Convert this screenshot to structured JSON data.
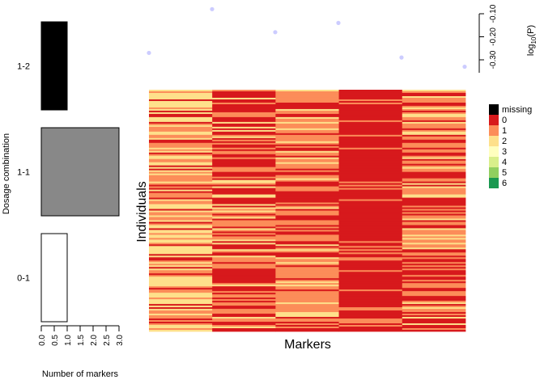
{
  "chart_data": [
    {
      "type": "bar",
      "orientation": "horizontal",
      "categories": [
        "1-2",
        "1-1",
        "0-1"
      ],
      "values": [
        1,
        3,
        1
      ],
      "colors": [
        "#000000",
        "#888888",
        "#ffffff"
      ],
      "xlabel": "Number of markers",
      "ylabel": "Dosage combination",
      "xlim": [
        0,
        3
      ],
      "xticks": [
        "0.0",
        "0.5",
        "1.0",
        "1.5",
        "2.0",
        "2.5",
        "3.0"
      ]
    },
    {
      "type": "scatter",
      "x": [
        1,
        2,
        3,
        4,
        5,
        6
      ],
      "y": [
        -0.27,
        -0.08,
        -0.18,
        -0.14,
        -0.29,
        -0.33
      ],
      "color": "#ccccff",
      "ylabel_prefix": "log",
      "ylabel_sub": "10",
      "ylabel_suffix": "(P)",
      "ylim": [
        -0.32,
        -0.08
      ],
      "yticks": [
        "-0.10",
        "-0.20",
        "-0.30"
      ]
    },
    {
      "type": "heatmap",
      "xlabel": "Markers",
      "ylabel": "Individuals",
      "n_markers": 5,
      "n_individuals": 150,
      "marker_dosage_probabilities": [
        [
          0.25,
          0.3,
          0.45
        ],
        [
          0.55,
          0.3,
          0.15
        ],
        [
          0.3,
          0.55,
          0.15
        ],
        [
          0.85,
          0.15,
          0.0
        ],
        [
          0.4,
          0.45,
          0.15
        ]
      ],
      "legend": {
        "labels": [
          "missing",
          "0",
          "1",
          "2",
          "3",
          "4",
          "5",
          "6"
        ],
        "colors": [
          "#000000",
          "#d7191c",
          "#fc8d59",
          "#fee08b",
          "#ffffbf",
          "#d9ef8b",
          "#91cf60",
          "#1a9850"
        ]
      }
    }
  ]
}
